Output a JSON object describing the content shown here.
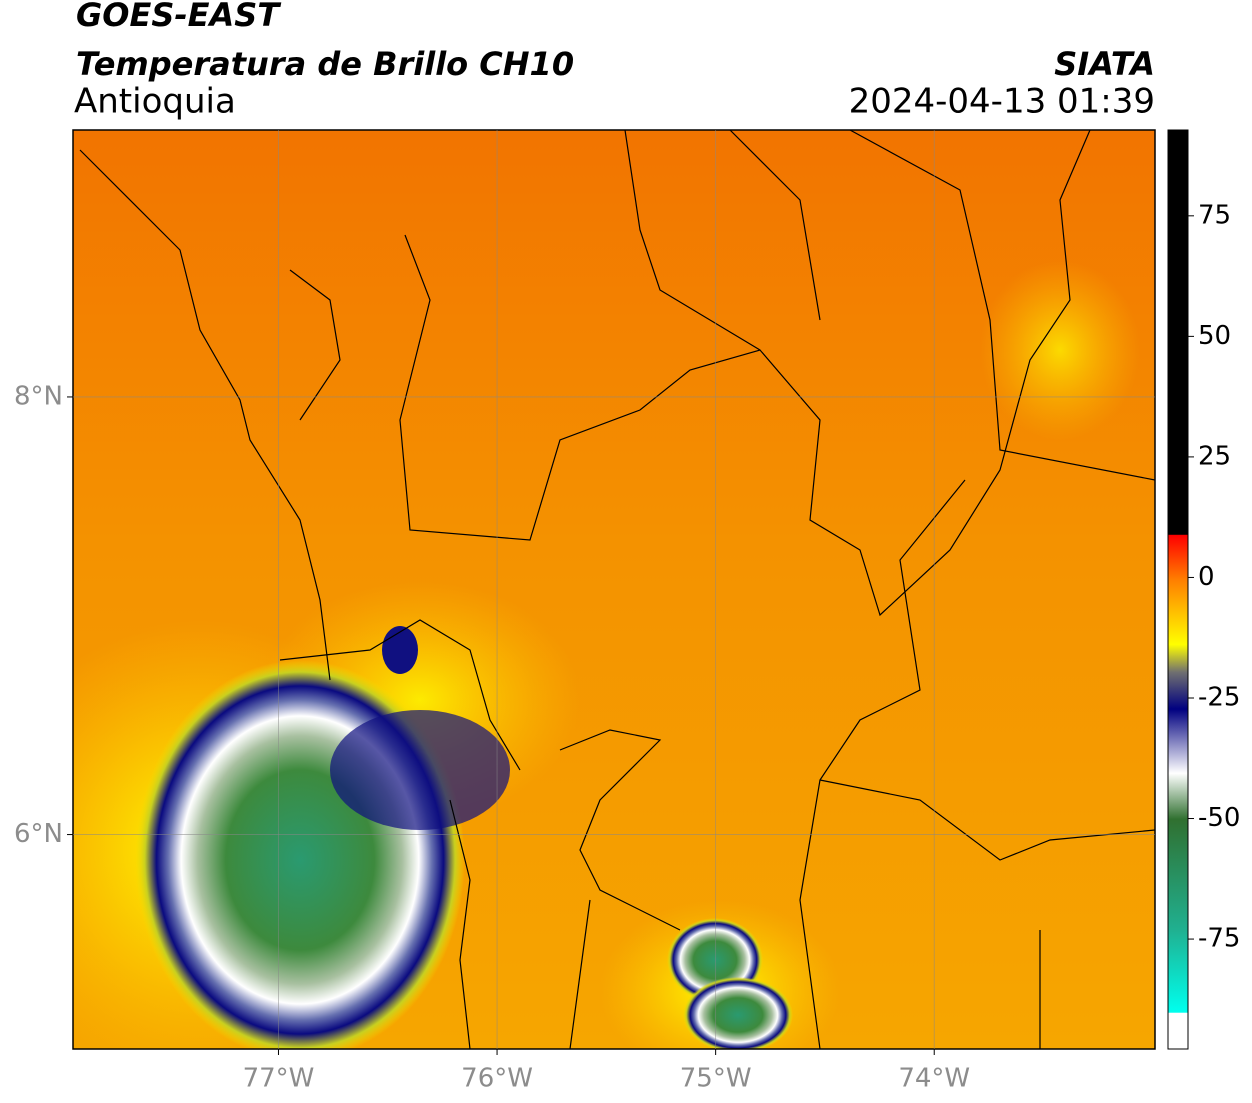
{
  "header": {
    "source": "GOES-EAST",
    "title": "Temperatura de Brillo CH10",
    "agency": "SIATA",
    "region": "Antioquia",
    "datetime": "2024-04-13 01:39"
  },
  "map": {
    "xlim": [
      -77.94,
      -72.99
    ],
    "ylim": [
      5.02,
      9.22
    ],
    "xticks": [
      {
        "value": -77,
        "label": "77°W"
      },
      {
        "value": -76,
        "label": "76°W"
      },
      {
        "value": -75,
        "label": "75°W"
      },
      {
        "value": -74,
        "label": "74°W"
      }
    ],
    "yticks": [
      {
        "value": 8,
        "label": "8°N"
      },
      {
        "value": 6,
        "label": "6°N"
      }
    ],
    "grid": true
  },
  "colorbar": {
    "lim": [
      -97.8,
      92.8
    ],
    "ticks": [
      75,
      50,
      25,
      0,
      -25,
      -50,
      -75
    ]
  }
}
